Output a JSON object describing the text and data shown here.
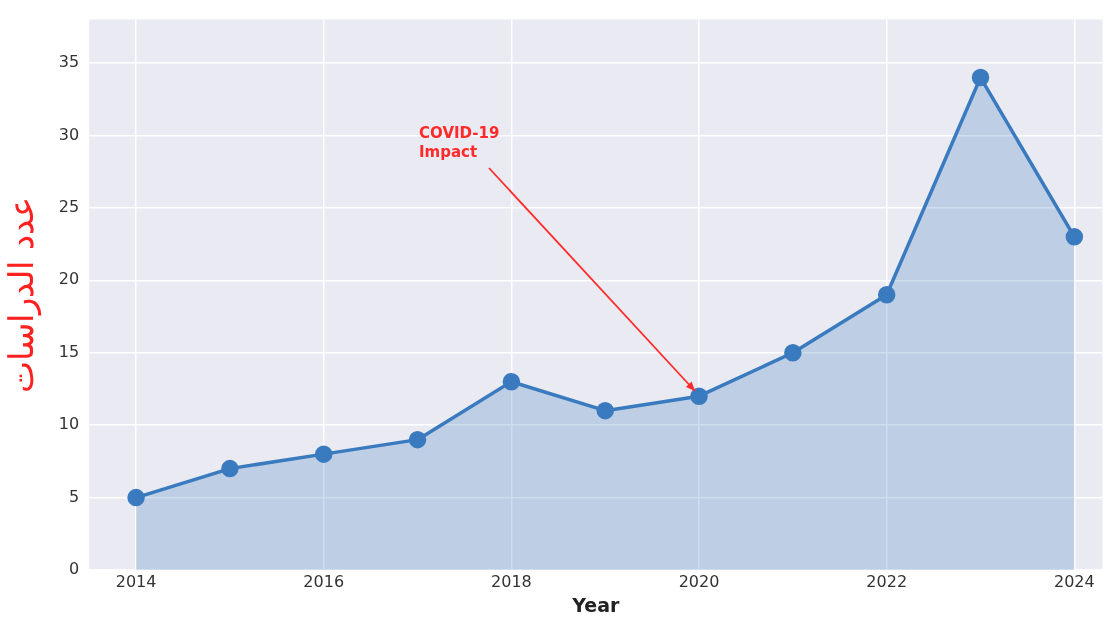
{
  "chart_data": {
    "type": "area",
    "xlabel": "Year",
    "ylabel": "عدد الدراسات",
    "x": [
      2014,
      2015,
      2016,
      2017,
      2018,
      2019,
      2020,
      2021,
      2022,
      2023,
      2024
    ],
    "series": [
      {
        "color": "#3a7abf",
        "values": [
          5,
          7,
          8,
          9,
          13,
          11,
          12,
          15,
          19,
          34,
          23
        ]
      }
    ],
    "xlim": [
      2013.5,
      2024.3
    ],
    "xticks": [
      2014,
      2016,
      2018,
      2020,
      2022,
      2024
    ],
    "ylim": [
      0,
      38
    ],
    "yticks": [
      0,
      5,
      10,
      15,
      20,
      25,
      30,
      35
    ],
    "grid": true,
    "marker": "circle",
    "legend": false,
    "annotations": [
      {
        "text": "COVID-19\nImpact",
        "x": 2020,
        "y": 12
      }
    ]
  }
}
